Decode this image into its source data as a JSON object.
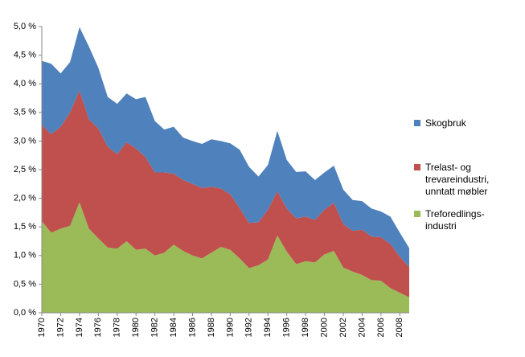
{
  "chart_data": {
    "type": "stacked_area",
    "x": [
      1970,
      1971,
      1972,
      1973,
      1974,
      1975,
      1976,
      1977,
      1978,
      1979,
      1980,
      1981,
      1982,
      1983,
      1984,
      1985,
      1986,
      1987,
      1988,
      1989,
      1990,
      1991,
      1992,
      1993,
      1994,
      1995,
      1996,
      1997,
      1998,
      1999,
      2000,
      2001,
      2002,
      2003,
      2004,
      2005,
      2006,
      2007,
      2008,
      2009
    ],
    "xlim": [
      1970,
      2009
    ],
    "xticks": [
      1970,
      1972,
      1974,
      1976,
      1978,
      1980,
      1982,
      1984,
      1986,
      1988,
      1990,
      1992,
      1994,
      1996,
      1998,
      2000,
      2002,
      2004,
      2006,
      2008
    ],
    "ylim": [
      0,
      5
    ],
    "yticks": [
      {
        "value": 0,
        "label": "0,0 %"
      },
      {
        "value": 0.5,
        "label": "0,5 %"
      },
      {
        "value": 1,
        "label": "1,0 %"
      },
      {
        "value": 1.5,
        "label": "1,5 %"
      },
      {
        "value": 2,
        "label": "2,0 %"
      },
      {
        "value": 2.5,
        "label": "2,5 %"
      },
      {
        "value": 3,
        "label": "3,0 %"
      },
      {
        "value": 3.5,
        "label": "3,5 %"
      },
      {
        "value": 4,
        "label": "4,0 %"
      },
      {
        "value": 4.5,
        "label": "4,5 %"
      },
      {
        "value": 5,
        "label": "5,0 %"
      }
    ],
    "grid": false,
    "legend": "right",
    "series": [
      {
        "name": "Treforedlings-industri",
        "color": "#9bbb59",
        "values": [
          1.6,
          1.4,
          1.47,
          1.52,
          1.93,
          1.47,
          1.3,
          1.14,
          1.12,
          1.25,
          1.1,
          1.12,
          1.0,
          1.05,
          1.19,
          1.08,
          1.0,
          0.95,
          1.05,
          1.15,
          1.1,
          0.95,
          0.78,
          0.83,
          0.93,
          1.35,
          1.07,
          0.85,
          0.9,
          0.88,
          1.02,
          1.08,
          0.79,
          0.72,
          0.66,
          0.57,
          0.56,
          0.43,
          0.35,
          0.27
        ]
      },
      {
        "name": "Trelast- og trevareindustri, unntatt møbler",
        "color": "#c0504d",
        "values": [
          1.68,
          1.72,
          1.78,
          1.98,
          1.95,
          1.91,
          1.92,
          1.76,
          1.65,
          1.73,
          1.77,
          1.6,
          1.45,
          1.4,
          1.24,
          1.24,
          1.25,
          1.23,
          1.15,
          1.02,
          0.97,
          0.88,
          0.79,
          0.75,
          0.87,
          0.77,
          0.75,
          0.8,
          0.78,
          0.74,
          0.78,
          0.84,
          0.76,
          0.71,
          0.79,
          0.76,
          0.76,
          0.77,
          0.63,
          0.53
        ]
      },
      {
        "name": "Skogbruk",
        "color": "#4f81bd",
        "values": [
          1.12,
          1.23,
          0.93,
          0.88,
          1.11,
          1.27,
          1.06,
          0.87,
          0.88,
          0.85,
          0.86,
          1.05,
          0.9,
          0.75,
          0.82,
          0.74,
          0.75,
          0.77,
          0.83,
          0.83,
          0.89,
          1.02,
          0.98,
          0.8,
          0.78,
          1.06,
          0.85,
          0.81,
          0.79,
          0.7,
          0.65,
          0.65,
          0.6,
          0.54,
          0.5,
          0.49,
          0.45,
          0.48,
          0.42,
          0.33
        ]
      }
    ]
  }
}
